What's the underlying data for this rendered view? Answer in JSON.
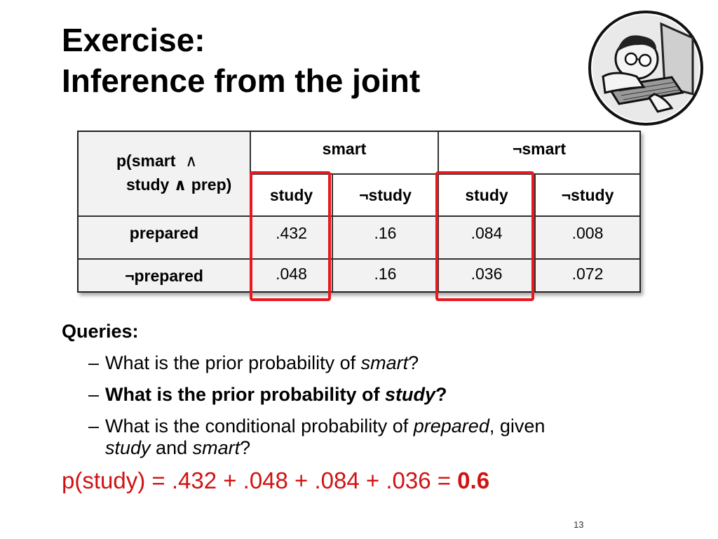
{
  "slide": {
    "title_line1": "Exercise:",
    "title_line2": "Inference from the joint",
    "page_number": "13"
  },
  "table": {
    "corner_line1": "p(smart",
    "corner_and": "∧",
    "corner_line2": "study ∧ prep)",
    "group_headers": [
      "smart",
      "¬smart"
    ],
    "sub_headers": [
      "study",
      "¬study",
      "study",
      "¬study"
    ],
    "rows": [
      {
        "label": "prepared",
        "values": [
          ".432",
          ".16",
          ".084",
          ".008"
        ]
      },
      {
        "label": "¬prepared",
        "values": [
          ".048",
          ".16",
          ".036",
          ".072"
        ]
      }
    ],
    "highlight_color": "#e8181e"
  },
  "queries": {
    "heading": "Queries:",
    "dash": "–",
    "q1_pre": "What is the prior probability of ",
    "q1_em": "smart",
    "q1_post": "?",
    "q2_pre": "What is the prior probability of ",
    "q2_em": "study",
    "q2_post": "?",
    "q3_pre": "What is the conditional probability of ",
    "q3_em": "prepared",
    "q3_post": ", given",
    "q3_line2_em1": "study",
    "q3_line2_mid": " and ",
    "q3_line2_em2": "smart",
    "q3_line2_post": "?"
  },
  "answer": {
    "expression": "p(study) = .432 + .048 + .084 + .036 = ",
    "result": "0.6",
    "color": "#d11212"
  }
}
